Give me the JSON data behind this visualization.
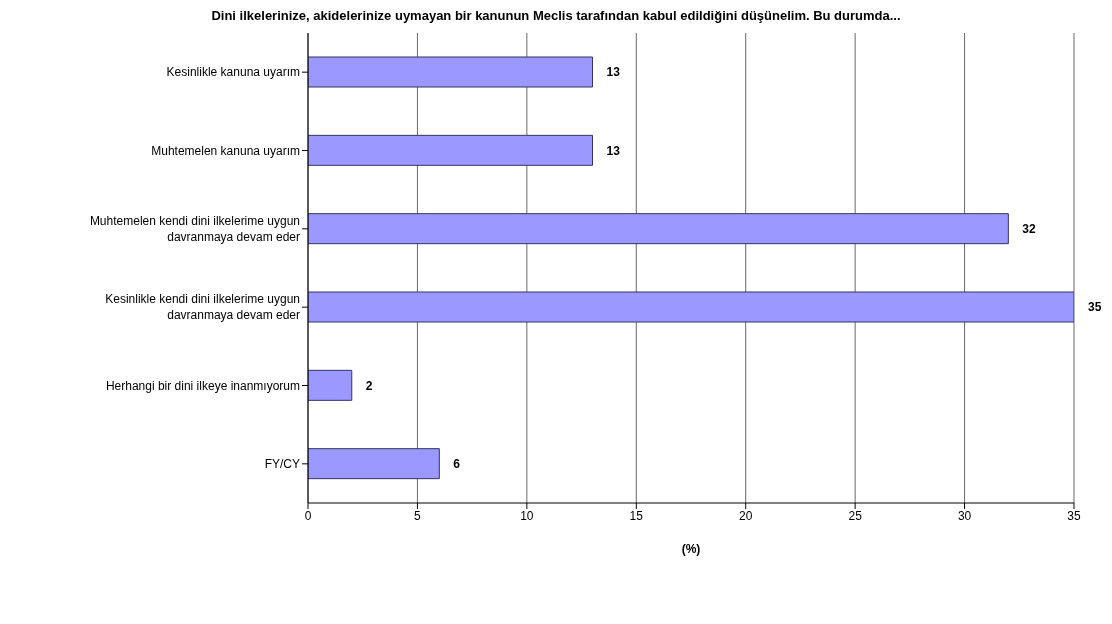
{
  "chart_data": {
    "type": "bar",
    "orientation": "horizontal",
    "title": "Dini ilkelerinize, akidelerinize uymayan bir kanunun Meclis tarafından kabul edildiğini düşünelim. Bu durumda...",
    "xlabel": "(%)",
    "categories": [
      "Kesinlikle kanuna uyarım",
      "Muhtemelen kanuna uyarım",
      "Muhtemelen kendi dini ilkelerime uygun davranmaya devam eder",
      "Kesinlikle kendi dini ilkelerime uygun davranmaya devam eder",
      "Herhangi bir dini ilkeye inanmıyorum",
      "FY/CY"
    ],
    "values": [
      13,
      13,
      32,
      35,
      2,
      6
    ],
    "color": "#9999ff",
    "xlim": [
      0,
      35
    ],
    "xticks": [
      0,
      5,
      10,
      15,
      20,
      25,
      30,
      35
    ],
    "grid": "x",
    "data_labels": true
  }
}
